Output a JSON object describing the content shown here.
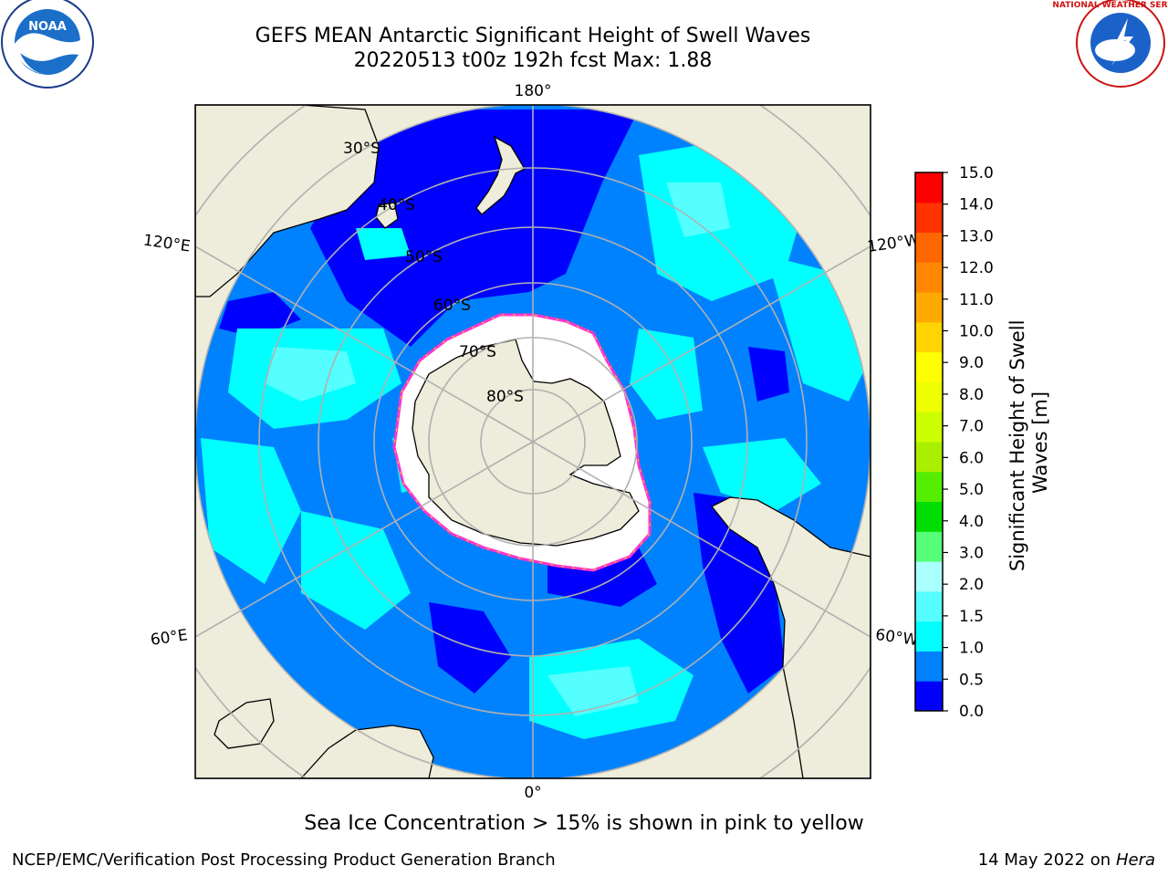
{
  "header": {
    "title_line1": "GEFS MEAN Antarctic Significant Height of Swell Waves",
    "title_line2": "20220513 t00z 192h fcst   Max: 1.88",
    "left_logo": "noara-logo",
    "right_logo": "national-weather-service-logo",
    "nws_logo_text": "NATIONAL WEATHER SERVICE"
  },
  "map": {
    "projection": "south-polar-stereographic",
    "longitude_labels": [
      "180°",
      "120°E",
      "120°W",
      "60°E",
      "60°W",
      "0°"
    ],
    "latitude_labels": [
      "30°S",
      "40°S",
      "50°S",
      "60°S",
      "70°S",
      "80°S"
    ],
    "colors": {
      "land": "#EEECDA",
      "ocean_lt_0_5": "#0000FF",
      "ocean_0_5_1": "#0082FF",
      "ocean_1_1_5": "#00FFFF",
      "ocean_1_5_2": "#55FFFF",
      "sea_ice": "#FFFFFF",
      "ice_edge": "#FF33CC",
      "grid": "#b0b0b0"
    }
  },
  "colorbar": {
    "label": "Significant Height of Swell Waves [m]",
    "label_line1": "Significant Height of Swell",
    "label_line2": "Waves [m]",
    "ticks": [
      "15.0",
      "14.0",
      "13.0",
      "12.0",
      "11.0",
      "10.0",
      "9.0",
      "8.0",
      "7.0",
      "6.0",
      "5.0",
      "4.0",
      "3.0",
      "2.0",
      "1.5",
      "1.0",
      "0.5",
      "0.0"
    ],
    "colors_bottom_to_top": [
      "#0000FF",
      "#0082FF",
      "#00FFFF",
      "#55FFFF",
      "#AAFFFF",
      "#55FF77",
      "#00DD00",
      "#55EE00",
      "#AAEE00",
      "#CCFF00",
      "#EEFF00",
      "#FFFF00",
      "#FFD400",
      "#FFAA00",
      "#FF8800",
      "#FF6600",
      "#FF3300",
      "#FF0000"
    ]
  },
  "note": "Sea Ice Concentration > 15% is shown in pink to yellow",
  "footer": {
    "left": "NCEP/EMC/Verification Post Processing Product Generation Branch",
    "right_date": "14 May 2022 on",
    "right_host": "Hera"
  }
}
